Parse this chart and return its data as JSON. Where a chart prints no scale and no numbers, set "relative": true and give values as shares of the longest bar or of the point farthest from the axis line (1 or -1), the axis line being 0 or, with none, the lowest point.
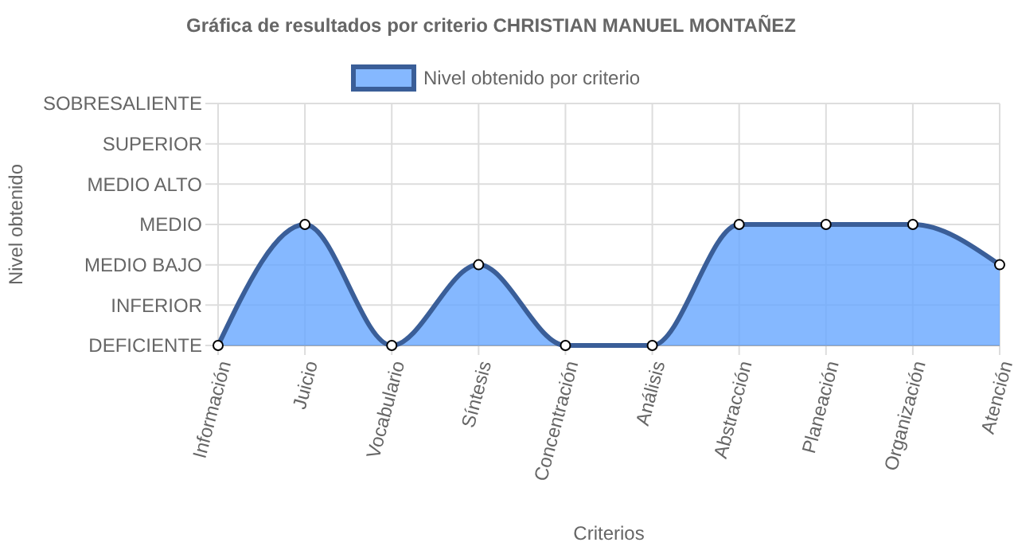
{
  "chart_data": {
    "type": "area",
    "title": "Gráfica de resultados por criterio CHRISTIAN MANUEL MONTAÑEZ",
    "xlabel": "Criterios",
    "annotations": [
      "Nivel obtenido"
    ],
    "categories": [
      "Información",
      "Juicio",
      "Vocabulario",
      "Síntesis",
      "Concentración",
      "Análisis",
      "Abstracción",
      "Planeación",
      "Organización",
      "Atención"
    ],
    "y_categories": [
      "SOBRESALIENTE",
      "SUPERIOR",
      "MEDIO ALTO",
      "MEDIO",
      "MEDIO BAJO",
      "INFERIOR",
      "DEFICIENTE"
    ],
    "relative": true,
    "series": [
      {
        "name": "Nivel obtenido por criterio",
        "color": "#3a5e98",
        "values": [
          0,
          1,
          0,
          0.667,
          0,
          0,
          1,
          1,
          1,
          0.667
        ]
      }
    ],
    "grid": true,
    "legend": "top",
    "marker": "circle",
    "line_style": "solid"
  }
}
